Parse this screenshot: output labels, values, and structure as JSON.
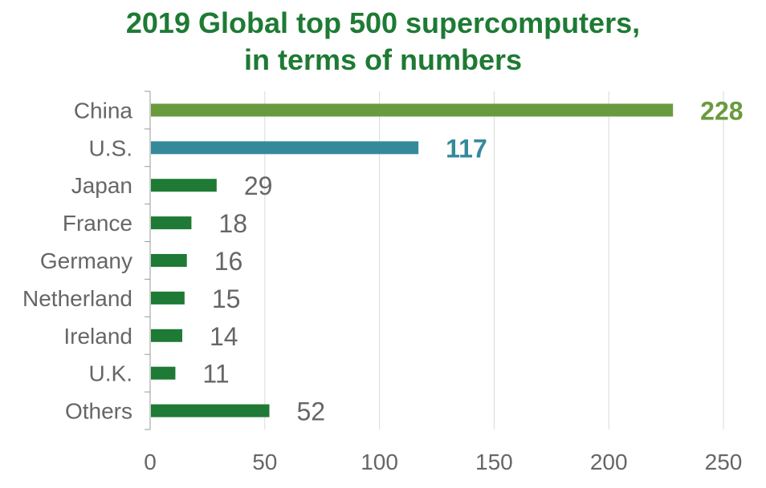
{
  "chart_data": {
    "type": "bar",
    "orientation": "horizontal",
    "title_lines": [
      "2019 Global top 500 supercomputers,",
      "in terms of numbers"
    ],
    "categories": [
      "China",
      "U.S.",
      "Japan",
      "France",
      "Germany",
      "Netherland",
      "Ireland",
      "U.K.",
      "Others"
    ],
    "values": [
      228,
      117,
      29,
      18,
      16,
      15,
      14,
      11,
      52
    ],
    "xlim": [
      0,
      250
    ],
    "xticks": [
      0,
      50,
      100,
      150,
      200,
      250
    ],
    "grid": "vertical",
    "colors": {
      "title": "#1e7a34",
      "china": "#6a9a3e",
      "us": "#348a9b",
      "default": "#1e7a34",
      "default_label": "#666666",
      "tick_label": "#666666",
      "axis": "#999999",
      "grid": "#d9d9d9"
    },
    "bar_colors": [
      "#6a9a3e",
      "#348a9b",
      "#1e7a34",
      "#1e7a34",
      "#1e7a34",
      "#1e7a34",
      "#1e7a34",
      "#1e7a34",
      "#1e7a34"
    ],
    "label_colors": [
      "#6a9a3e",
      "#348a9b",
      "#666666",
      "#666666",
      "#666666",
      "#666666",
      "#666666",
      "#666666",
      "#666666"
    ],
    "label_bold": [
      true,
      true,
      false,
      false,
      false,
      false,
      false,
      false,
      false
    ]
  }
}
